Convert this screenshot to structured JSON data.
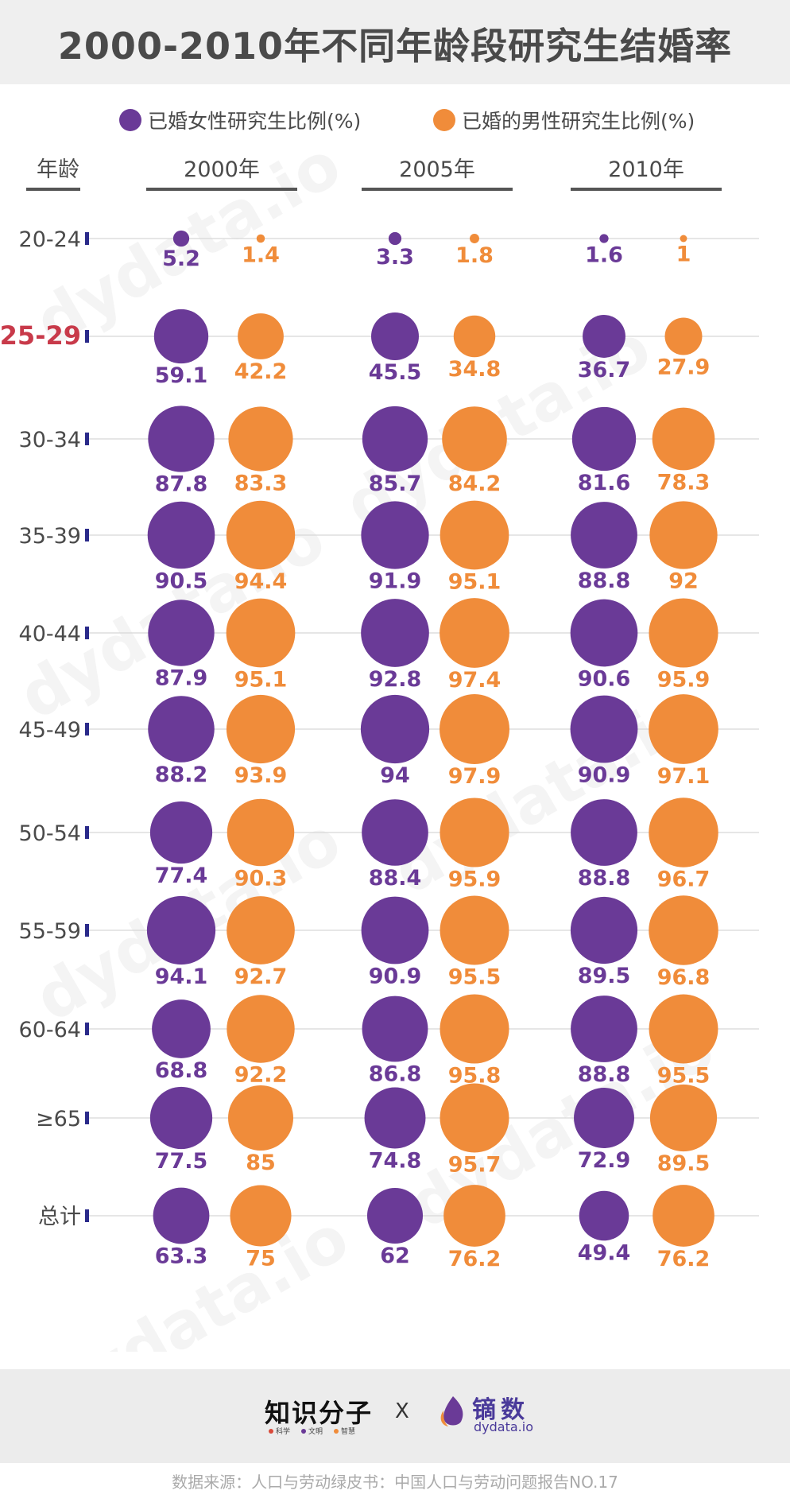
{
  "header": {
    "title": "2000-2010年不同年龄段研究生结婚率"
  },
  "legend": [
    {
      "label": "已婚女性研究生比例(%)",
      "color": "#6a3a97"
    },
    {
      "label": "已婚的男性研究生比例(%)",
      "color": "#f08c3a"
    }
  ],
  "watermark": {
    "cn": "镝数",
    "url": "dydata.io"
  },
  "chart_data": {
    "type": "bubble",
    "title": "2000-2010年不同年龄段研究生结婚率",
    "row_header": "年龄",
    "years": [
      "2000年",
      "2005年",
      "2010年"
    ],
    "categories": [
      "20-24",
      "25-29",
      "30-34",
      "35-39",
      "40-44",
      "45-49",
      "50-54",
      "55-59",
      "60-64",
      "≥65",
      "总计"
    ],
    "highlight_category": "25-29",
    "series": [
      {
        "name": "已婚女性研究生比例(%)",
        "color": "#6a3a97",
        "values": [
          [
            5.2,
            59.1,
            87.8,
            90.5,
            87.9,
            88.2,
            77.4,
            94.1,
            68.8,
            77.5,
            63.3
          ],
          [
            3.3,
            45.5,
            85.7,
            91.9,
            92.8,
            94,
            88.4,
            90.9,
            86.8,
            74.8,
            62
          ],
          [
            1.6,
            36.7,
            81.6,
            88.8,
            90.6,
            90.9,
            88.8,
            89.5,
            88.8,
            72.9,
            49.4
          ]
        ]
      },
      {
        "name": "已婚的男性研究生比例(%)",
        "color": "#f08c3a",
        "values": [
          [
            1.4,
            42.2,
            83.3,
            94.4,
            95.1,
            93.9,
            90.3,
            92.7,
            92.2,
            85,
            75
          ],
          [
            1.8,
            34.8,
            84.2,
            95.1,
            97.4,
            97.9,
            95.9,
            95.5,
            95.8,
            95.7,
            76.2
          ],
          [
            1,
            27.9,
            78.3,
            92,
            95.9,
            97.1,
            96.7,
            96.8,
            95.5,
            89.5,
            76.2
          ]
        ]
      }
    ]
  },
  "footer": {
    "partner_logo": "知识分子",
    "partner_tags": [
      "科学",
      "文明",
      "智慧"
    ],
    "partner_tag_colors": [
      "#d94a3a",
      "#6a3a97",
      "#f08c3a"
    ],
    "separator": "X",
    "brand_name": "镝数",
    "brand_url": "dydata.io",
    "source": "数据来源：人口与劳动绿皮书：中国人口与劳动问题报告NO.17"
  }
}
